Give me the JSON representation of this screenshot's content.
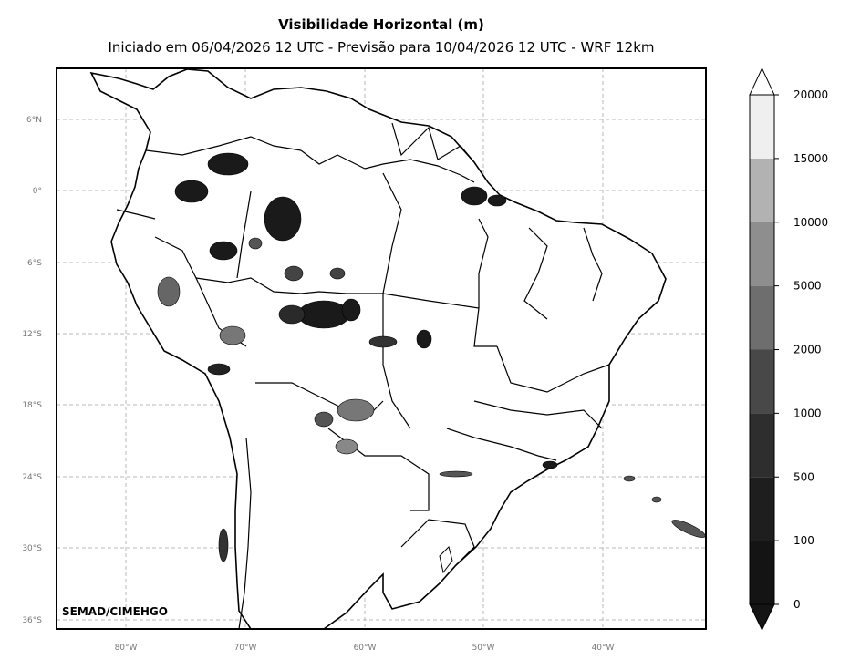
{
  "title": "Visibilidade Horizontal (m)",
  "subtitle": "Iniciado em 06/04/2026 12 UTC - Previsão para 10/04/2026 12 UTC - WRF 12km",
  "credit": "SEMAD/CIMEHGO",
  "map": {
    "lat_ticks": [
      "6°N",
      "0°",
      "6°S",
      "12°S",
      "18°S",
      "24°S",
      "30°S",
      "36°S"
    ],
    "lon_ticks": [
      "80°W",
      "70°W",
      "60°W",
      "50°W",
      "40°W"
    ],
    "gridlines": "dashed",
    "colors": {
      "frame": "#000000",
      "land": "#ffffff",
      "grid": "#b8b8b8"
    }
  },
  "colorbar": {
    "labels": [
      "0",
      "100",
      "500",
      "1000",
      "2000",
      "5000",
      "10000",
      "15000",
      "20000"
    ],
    "colors": [
      "#141414",
      "#1e1e1e",
      "#2e2e2e",
      "#484848",
      "#6e6e6e",
      "#8e8e8e",
      "#b2b2b2",
      "#efefef"
    ],
    "extend": "both"
  }
}
